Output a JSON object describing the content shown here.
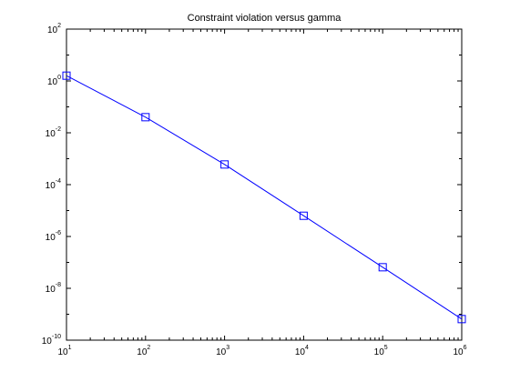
{
  "chart_data": {
    "type": "line",
    "title": "Constraint violation versus gamma",
    "xlabel": "",
    "ylabel": "",
    "x_scale": "log",
    "y_scale": "log",
    "xlim": [
      10,
      1000000
    ],
    "ylim": [
      1e-10,
      100
    ],
    "grid": false,
    "legend": "none",
    "x_ticks": [
      {
        "base": "10",
        "exp": "1",
        "value": 10
      },
      {
        "base": "10",
        "exp": "2",
        "value": 100
      },
      {
        "base": "10",
        "exp": "3",
        "value": 1000
      },
      {
        "base": "10",
        "exp": "4",
        "value": 10000
      },
      {
        "base": "10",
        "exp": "5",
        "value": 100000
      },
      {
        "base": "10",
        "exp": "6",
        "value": 1000000
      }
    ],
    "y_ticks": [
      {
        "base": "10",
        "exp": "2",
        "value": 100
      },
      {
        "base": "10",
        "exp": "0",
        "value": 1
      },
      {
        "base": "10",
        "exp": "-2",
        "value": 0.01
      },
      {
        "base": "10",
        "exp": "-4",
        "value": 0.0001
      },
      {
        "base": "10",
        "exp": "-6",
        "value": 1e-06
      },
      {
        "base": "10",
        "exp": "-8",
        "value": 1e-08
      },
      {
        "base": "10",
        "exp": "-10",
        "value": 1e-10
      }
    ],
    "series": [
      {
        "x": [
          10,
          100,
          1000,
          10000,
          100000,
          1000000
        ],
        "y": [
          1.6,
          0.04,
          0.0006,
          6.3e-06,
          6.5e-08,
          6.5e-10
        ],
        "color": "#0000ff",
        "marker": "square"
      }
    ]
  }
}
